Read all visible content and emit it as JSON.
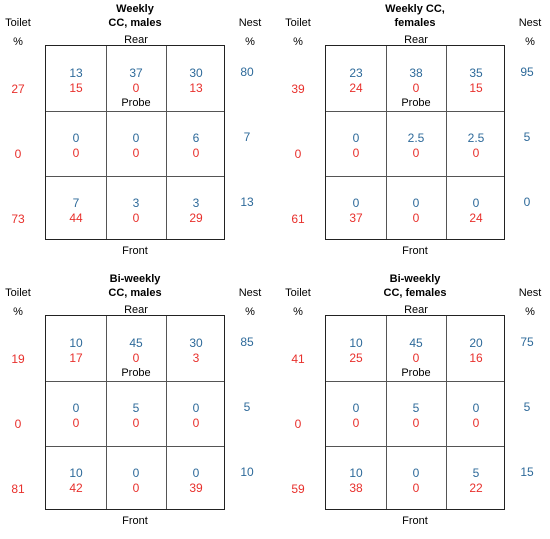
{
  "labels": {
    "toilet": "Toilet",
    "nest": "Nest",
    "percent": "%",
    "rear": "Rear",
    "front": "Front",
    "probe": "Probe"
  },
  "colors": {
    "nest_values": "#2e6a9a",
    "toilet_values": "#e8302c",
    "grid": "#222222"
  },
  "panels": [
    {
      "title_line1": "Weekly",
      "title_line2": "CC, males",
      "cells": [
        [
          {
            "nest": "13",
            "toilet": "15"
          },
          {
            "nest": "37",
            "toilet": "0"
          },
          {
            "nest": "30",
            "toilet": "13"
          }
        ],
        [
          {
            "nest": "0",
            "toilet": "0"
          },
          {
            "nest": "0",
            "toilet": "0"
          },
          {
            "nest": "6",
            "toilet": "0"
          }
        ],
        [
          {
            "nest": "7",
            "toilet": "44"
          },
          {
            "nest": "3",
            "toilet": "0"
          },
          {
            "nest": "3",
            "toilet": "29"
          }
        ]
      ],
      "toilet_row": [
        "27",
        "0",
        "73"
      ],
      "nest_row": [
        "80",
        "7",
        "13"
      ]
    },
    {
      "title_line1": "Weekly CC,",
      "title_line2": "females",
      "cells": [
        [
          {
            "nest": "23",
            "toilet": "24"
          },
          {
            "nest": "38",
            "toilet": "0"
          },
          {
            "nest": "35",
            "toilet": "15"
          }
        ],
        [
          {
            "nest": "0",
            "toilet": "0"
          },
          {
            "nest": "2.5",
            "toilet": "0"
          },
          {
            "nest": "2.5",
            "toilet": "0"
          }
        ],
        [
          {
            "nest": "0",
            "toilet": "37"
          },
          {
            "nest": "0",
            "toilet": "0"
          },
          {
            "nest": "0",
            "toilet": "24"
          }
        ]
      ],
      "toilet_row": [
        "39",
        "0",
        "61"
      ],
      "nest_row": [
        "95",
        "5",
        "0"
      ]
    },
    {
      "title_line1": "Bi-weekly",
      "title_line2": "CC, males",
      "cells": [
        [
          {
            "nest": "10",
            "toilet": "17"
          },
          {
            "nest": "45",
            "toilet": "0"
          },
          {
            "nest": "30",
            "toilet": "3"
          }
        ],
        [
          {
            "nest": "0",
            "toilet": "0"
          },
          {
            "nest": "5",
            "toilet": "0"
          },
          {
            "nest": "0",
            "toilet": "0"
          }
        ],
        [
          {
            "nest": "10",
            "toilet": "42"
          },
          {
            "nest": "0",
            "toilet": "0"
          },
          {
            "nest": "0",
            "toilet": "39"
          }
        ]
      ],
      "toilet_row": [
        "19",
        "0",
        "81"
      ],
      "nest_row": [
        "85",
        "5",
        "10"
      ]
    },
    {
      "title_line1": "Bi-weekly",
      "title_line2": "CC, females",
      "cells": [
        [
          {
            "nest": "10",
            "toilet": "25"
          },
          {
            "nest": "45",
            "toilet": "0"
          },
          {
            "nest": "20",
            "toilet": "16"
          }
        ],
        [
          {
            "nest": "0",
            "toilet": "0"
          },
          {
            "nest": "5",
            "toilet": "0"
          },
          {
            "nest": "0",
            "toilet": "0"
          }
        ],
        [
          {
            "nest": "10",
            "toilet": "38"
          },
          {
            "nest": "0",
            "toilet": "0"
          },
          {
            "nest": "5",
            "toilet": "22"
          }
        ]
      ],
      "toilet_row": [
        "41",
        "0",
        "59"
      ],
      "nest_row": [
        "75",
        "5",
        "15"
      ]
    }
  ]
}
